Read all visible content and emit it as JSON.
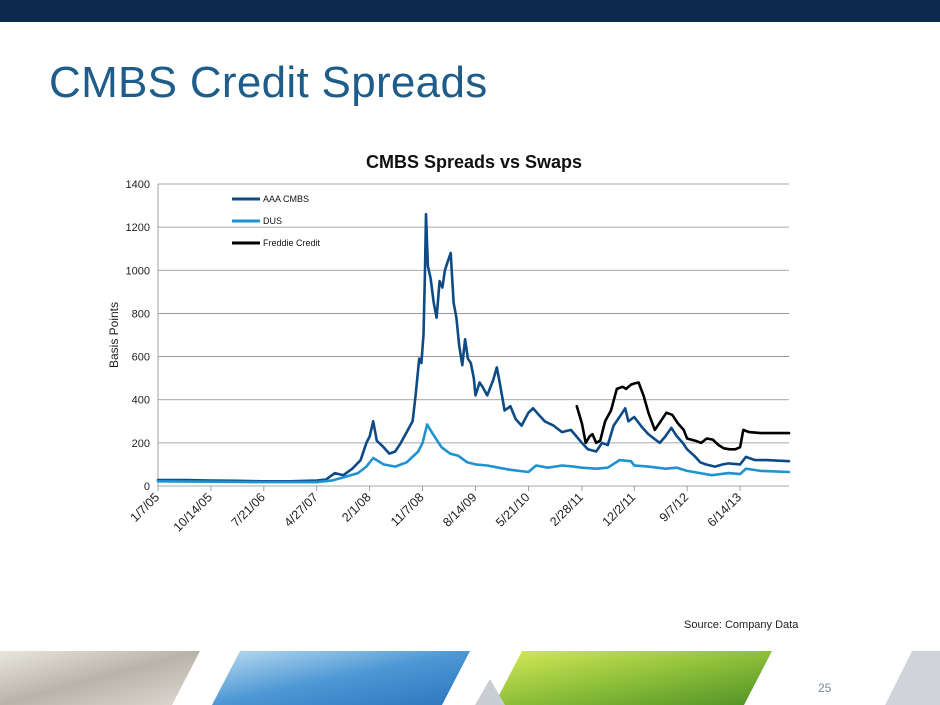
{
  "slide": {
    "title": "CMBS Credit Spreads",
    "source": "Source: Company Data",
    "page_number": "25"
  },
  "colors": {
    "header_bar": "#0b2a4e",
    "title": "#1e5c8a",
    "aaa_cmbs": "#0d4a86",
    "dus": "#1f93d0",
    "freddie": "#000000"
  },
  "chart_data": {
    "type": "line",
    "title": "CMBS Spreads vs Swaps",
    "ylabel": "Basis Points",
    "xlabel": "",
    "ylim": [
      0,
      1400
    ],
    "yticks": [
      0,
      200,
      400,
      600,
      800,
      1000,
      1200,
      1400
    ],
    "xlim": [
      "2005-01-07",
      "2014-02-28"
    ],
    "x_tick_labels": [
      "1/7/05",
      "10/14/05",
      "7/21/06",
      "4/27/07",
      "2/1/08",
      "11/7/08",
      "8/14/09",
      "5/21/10",
      "2/28/11",
      "12/2/11",
      "9/7/12",
      "6/14/13"
    ],
    "x_tick_dates": [
      "2005-01-07",
      "2005-10-14",
      "2006-07-21",
      "2007-04-27",
      "2008-02-01",
      "2008-11-07",
      "2009-08-14",
      "2010-05-21",
      "2011-02-28",
      "2011-12-02",
      "2012-09-07",
      "2013-06-14"
    ],
    "grid": true,
    "legend": "top-left",
    "series": [
      {
        "name": "AAA CMBS",
        "color": "#0d4a86",
        "points": [
          [
            "2005-01-07",
            28
          ],
          [
            "2005-06-01",
            28
          ],
          [
            "2005-10-14",
            25
          ],
          [
            "2006-03-01",
            24
          ],
          [
            "2006-07-21",
            22
          ],
          [
            "2006-12-01",
            22
          ],
          [
            "2007-04-27",
            25
          ],
          [
            "2007-06-15",
            30
          ],
          [
            "2007-08-01",
            60
          ],
          [
            "2007-09-15",
            50
          ],
          [
            "2007-11-01",
            80
          ],
          [
            "2007-12-15",
            120
          ],
          [
            "2008-01-15",
            200
          ],
          [
            "2008-02-01",
            230
          ],
          [
            "2008-02-20",
            300
          ],
          [
            "2008-03-10",
            210
          ],
          [
            "2008-04-15",
            180
          ],
          [
            "2008-05-15",
            150
          ],
          [
            "2008-06-15",
            160
          ],
          [
            "2008-07-15",
            200
          ],
          [
            "2008-08-15",
            250
          ],
          [
            "2008-09-15",
            300
          ],
          [
            "2008-10-01",
            420
          ],
          [
            "2008-10-20",
            590
          ],
          [
            "2008-11-01",
            570
          ],
          [
            "2008-11-12",
            700
          ],
          [
            "2008-11-20",
            1000
          ],
          [
            "2008-11-25",
            1260
          ],
          [
            "2008-12-05",
            1020
          ],
          [
            "2008-12-20",
            960
          ],
          [
            "2009-01-05",
            850
          ],
          [
            "2009-01-20",
            780
          ],
          [
            "2009-02-05",
            950
          ],
          [
            "2009-02-20",
            920
          ],
          [
            "2009-03-05",
            1000
          ],
          [
            "2009-03-20",
            1040
          ],
          [
            "2009-04-05",
            1080
          ],
          [
            "2009-04-20",
            850
          ],
          [
            "2009-05-05",
            780
          ],
          [
            "2009-05-20",
            650
          ],
          [
            "2009-06-05",
            560
          ],
          [
            "2009-06-20",
            680
          ],
          [
            "2009-07-05",
            590
          ],
          [
            "2009-07-20",
            570
          ],
          [
            "2009-08-05",
            500
          ],
          [
            "2009-08-14",
            420
          ],
          [
            "2009-09-05",
            480
          ],
          [
            "2009-09-20",
            460
          ],
          [
            "2009-10-15",
            420
          ],
          [
            "2009-11-15",
            490
          ],
          [
            "2009-12-05",
            550
          ],
          [
            "2009-12-20",
            480
          ],
          [
            "2010-01-15",
            350
          ],
          [
            "2010-02-15",
            370
          ],
          [
            "2010-03-15",
            310
          ],
          [
            "2010-04-15",
            280
          ],
          [
            "2010-05-21",
            340
          ],
          [
            "2010-06-15",
            360
          ],
          [
            "2010-07-15",
            330
          ],
          [
            "2010-08-15",
            300
          ],
          [
            "2010-10-01",
            280
          ],
          [
            "2010-11-15",
            250
          ],
          [
            "2011-01-01",
            260
          ],
          [
            "2011-02-28",
            200
          ],
          [
            "2011-04-01",
            170
          ],
          [
            "2011-05-15",
            160
          ],
          [
            "2011-06-15",
            200
          ],
          [
            "2011-07-15",
            190
          ],
          [
            "2011-08-15",
            280
          ],
          [
            "2011-09-15",
            320
          ],
          [
            "2011-10-15",
            360
          ],
          [
            "2011-11-01",
            300
          ],
          [
            "2011-12-02",
            320
          ],
          [
            "2012-01-15",
            270
          ],
          [
            "2012-02-15",
            240
          ],
          [
            "2012-03-15",
            220
          ],
          [
            "2012-04-15",
            200
          ],
          [
            "2012-05-15",
            230
          ],
          [
            "2012-06-15",
            270
          ],
          [
            "2012-07-15",
            230
          ],
          [
            "2012-08-15",
            200
          ],
          [
            "2012-09-07",
            170
          ],
          [
            "2012-10-15",
            140
          ],
          [
            "2012-11-15",
            110
          ],
          [
            "2012-12-15",
            100
          ],
          [
            "2013-02-01",
            90
          ],
          [
            "2013-03-15",
            100
          ],
          [
            "2013-04-15",
            105
          ],
          [
            "2013-06-14",
            100
          ],
          [
            "2013-07-15",
            135
          ],
          [
            "2013-09-01",
            120
          ],
          [
            "2013-11-01",
            120
          ],
          [
            "2014-02-28",
            115
          ]
        ]
      },
      {
        "name": "DUS",
        "color": "#1f93d0",
        "points": [
          [
            "2005-01-07",
            22
          ],
          [
            "2005-10-14",
            20
          ],
          [
            "2006-07-21",
            18
          ],
          [
            "2007-04-27",
            18
          ],
          [
            "2007-07-15",
            25
          ],
          [
            "2007-09-15",
            40
          ],
          [
            "2007-12-01",
            60
          ],
          [
            "2008-01-15",
            90
          ],
          [
            "2008-02-20",
            130
          ],
          [
            "2008-04-15",
            100
          ],
          [
            "2008-06-15",
            90
          ],
          [
            "2008-08-15",
            110
          ],
          [
            "2008-10-15",
            160
          ],
          [
            "2008-11-07",
            200
          ],
          [
            "2008-12-01",
            285
          ],
          [
            "2009-01-01",
            240
          ],
          [
            "2009-02-15",
            180
          ],
          [
            "2009-04-01",
            150
          ],
          [
            "2009-05-15",
            140
          ],
          [
            "2009-07-01",
            110
          ],
          [
            "2009-08-14",
            100
          ],
          [
            "2009-10-15",
            95
          ],
          [
            "2009-12-15",
            85
          ],
          [
            "2010-02-15",
            75
          ],
          [
            "2010-05-21",
            65
          ],
          [
            "2010-07-01",
            95
          ],
          [
            "2010-09-01",
            85
          ],
          [
            "2010-11-15",
            95
          ],
          [
            "2011-01-15",
            90
          ],
          [
            "2011-02-28",
            85
          ],
          [
            "2011-05-15",
            80
          ],
          [
            "2011-07-15",
            85
          ],
          [
            "2011-09-15",
            120
          ],
          [
            "2011-11-15",
            115
          ],
          [
            "2011-12-02",
            95
          ],
          [
            "2012-02-15",
            90
          ],
          [
            "2012-05-15",
            80
          ],
          [
            "2012-07-15",
            85
          ],
          [
            "2012-09-07",
            70
          ],
          [
            "2012-11-15",
            60
          ],
          [
            "2013-01-15",
            50
          ],
          [
            "2013-04-15",
            60
          ],
          [
            "2013-06-14",
            55
          ],
          [
            "2013-07-15",
            80
          ],
          [
            "2013-10-01",
            70
          ],
          [
            "2014-02-28",
            65
          ]
        ]
      },
      {
        "name": "Freddie Credit",
        "color": "#000000",
        "points": [
          [
            "2011-02-01",
            370
          ],
          [
            "2011-02-28",
            290
          ],
          [
            "2011-03-20",
            200
          ],
          [
            "2011-04-10",
            230
          ],
          [
            "2011-04-25",
            240
          ],
          [
            "2011-05-15",
            200
          ],
          [
            "2011-06-05",
            210
          ],
          [
            "2011-07-01",
            300
          ],
          [
            "2011-08-01",
            350
          ],
          [
            "2011-09-01",
            450
          ],
          [
            "2011-10-01",
            460
          ],
          [
            "2011-10-20",
            450
          ],
          [
            "2011-11-15",
            470
          ],
          [
            "2011-12-02",
            475
          ],
          [
            "2011-12-25",
            480
          ],
          [
            "2012-01-20",
            420
          ],
          [
            "2012-02-15",
            340
          ],
          [
            "2012-03-20",
            260
          ],
          [
            "2012-04-20",
            300
          ],
          [
            "2012-05-20",
            340
          ],
          [
            "2012-06-20",
            330
          ],
          [
            "2012-07-20",
            290
          ],
          [
            "2012-08-20",
            260
          ],
          [
            "2012-09-07",
            220
          ],
          [
            "2012-10-20",
            210
          ],
          [
            "2012-11-20",
            200
          ],
          [
            "2012-12-20",
            220
          ],
          [
            "2013-01-20",
            215
          ],
          [
            "2013-02-20",
            190
          ],
          [
            "2013-03-20",
            175
          ],
          [
            "2013-04-20",
            170
          ],
          [
            "2013-05-20",
            170
          ],
          [
            "2013-06-14",
            180
          ],
          [
            "2013-07-01",
            260
          ],
          [
            "2013-08-01",
            250
          ],
          [
            "2013-10-01",
            245
          ],
          [
            "2014-02-28",
            245
          ]
        ]
      }
    ]
  }
}
